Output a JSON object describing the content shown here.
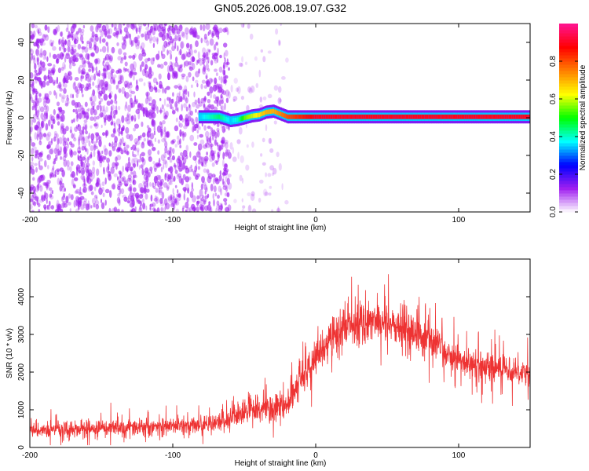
{
  "title": "GN05.2026.008.19.07.G32",
  "chart_data": [
    {
      "type": "heatmap",
      "xlabel": "Height of straight line (km)",
      "ylabel": "Frequency (Hz)",
      "xlim": [
        -200,
        150
      ],
      "ylim": [
        -50,
        50
      ],
      "xticks": [
        -200,
        -100,
        0,
        100
      ],
      "yticks": [
        -40,
        -20,
        0,
        20,
        40
      ],
      "colorbar": {
        "label": "Normalized spectral amplitude",
        "range": [
          0,
          1
        ],
        "ticks": [
          0.0,
          0.2,
          0.4,
          0.6,
          0.8
        ],
        "colors": [
          "#ffffff",
          "#a020f0",
          "#0000ff",
          "#00ffff",
          "#00ff00",
          "#ffff00",
          "#ff8000",
          "#ff0000",
          "#ff1493"
        ]
      },
      "noise_region": {
        "x_from": -200,
        "x_to": -60,
        "sparse_to": -20,
        "amplitude": 0.1
      },
      "ridge": [
        {
          "x": -82,
          "y": 0.5,
          "a": 0.35
        },
        {
          "x": -75,
          "y": 0.5,
          "a": 0.4
        },
        {
          "x": -68,
          "y": 0.5,
          "a": 0.45
        },
        {
          "x": -60,
          "y": -1.5,
          "a": 0.35
        },
        {
          "x": -55,
          "y": -1.0,
          "a": 0.4
        },
        {
          "x": -50,
          "y": 0.0,
          "a": 0.55
        },
        {
          "x": -45,
          "y": 1.0,
          "a": 0.6
        },
        {
          "x": -40,
          "y": 1.5,
          "a": 0.65
        },
        {
          "x": -35,
          "y": 3.0,
          "a": 0.7
        },
        {
          "x": -30,
          "y": 3.5,
          "a": 0.7
        },
        {
          "x": -25,
          "y": 2.0,
          "a": 0.75
        },
        {
          "x": -20,
          "y": 0.5,
          "a": 0.8
        },
        {
          "x": -10,
          "y": 0.5,
          "a": 0.85
        },
        {
          "x": 0,
          "y": 0.5,
          "a": 0.9
        },
        {
          "x": 10,
          "y": 0.5,
          "a": 0.9
        },
        {
          "x": 50,
          "y": 0.5,
          "a": 0.9
        },
        {
          "x": 100,
          "y": 0.5,
          "a": 0.9
        },
        {
          "x": 150,
          "y": 0.5,
          "a": 0.9
        }
      ]
    },
    {
      "type": "line",
      "xlabel": "Height of straight line (km)",
      "ylabel": "SNR (10 * v/v)",
      "xlim": [
        -200,
        150
      ],
      "ylim": [
        0,
        5000
      ],
      "xticks": [
        -200,
        -100,
        0,
        100
      ],
      "yticks": [
        0,
        1000,
        2000,
        3000,
        4000
      ],
      "color": "#ee3333",
      "series": [
        {
          "x": [
            -200,
            -180,
            -160,
            -140,
            -120,
            -100,
            -80,
            -70,
            -60,
            -50,
            -40,
            -30,
            -20,
            -10,
            0,
            10,
            20,
            30,
            40,
            50,
            60,
            70,
            80,
            90,
            100,
            110,
            120,
            130,
            140,
            150
          ],
          "values": [
            450,
            470,
            490,
            520,
            540,
            560,
            600,
            650,
            750,
            950,
            1000,
            1050,
            1150,
            1750,
            2400,
            2900,
            3200,
            3350,
            3400,
            3300,
            3150,
            3000,
            2800,
            2550,
            2300,
            2200,
            2150,
            2100,
            2050,
            2000
          ],
          "spread": [
            230,
            230,
            230,
            240,
            250,
            260,
            260,
            280,
            320,
            380,
            400,
            420,
            440,
            480,
            520,
            560,
            600,
            620,
            640,
            620,
            600,
            560,
            520,
            480,
            440,
            420,
            420,
            420,
            420,
            420
          ]
        }
      ]
    }
  ]
}
